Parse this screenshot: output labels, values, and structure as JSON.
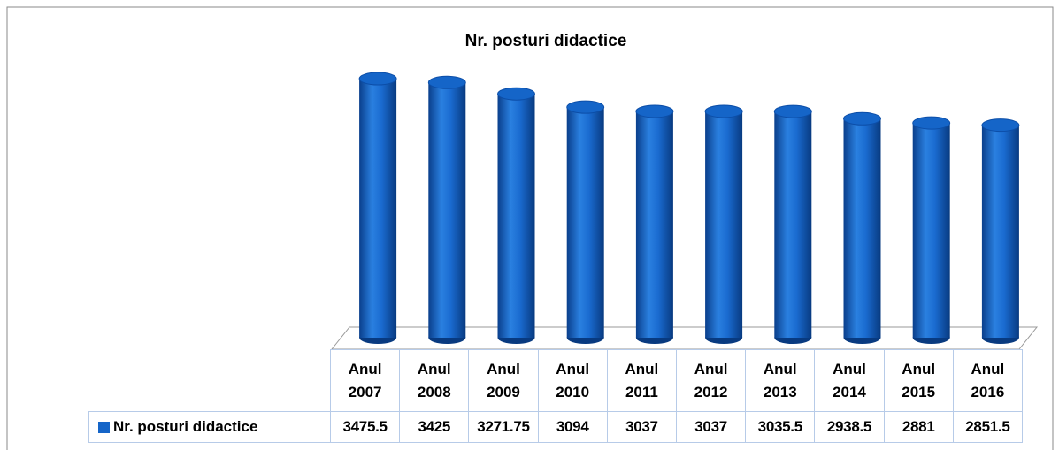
{
  "chart_data": {
    "type": "bar",
    "title": "Nr. posturi didactice",
    "categories": [
      "Anul 2007",
      "Anul 2008",
      "Anul 2009",
      "Anul 2010",
      "Anul 2011",
      "Anul 2012",
      "Anul 2013",
      "Anul 2014",
      "Anul 2015",
      "Anul 2016"
    ],
    "series": [
      {
        "name": "Nr. posturi didactice",
        "color": "#1565c8",
        "values": [
          3475.5,
          3425,
          3271.75,
          3094,
          3037,
          3037,
          3035.5,
          2938.5,
          2881,
          2851.5
        ]
      }
    ]
  }
}
